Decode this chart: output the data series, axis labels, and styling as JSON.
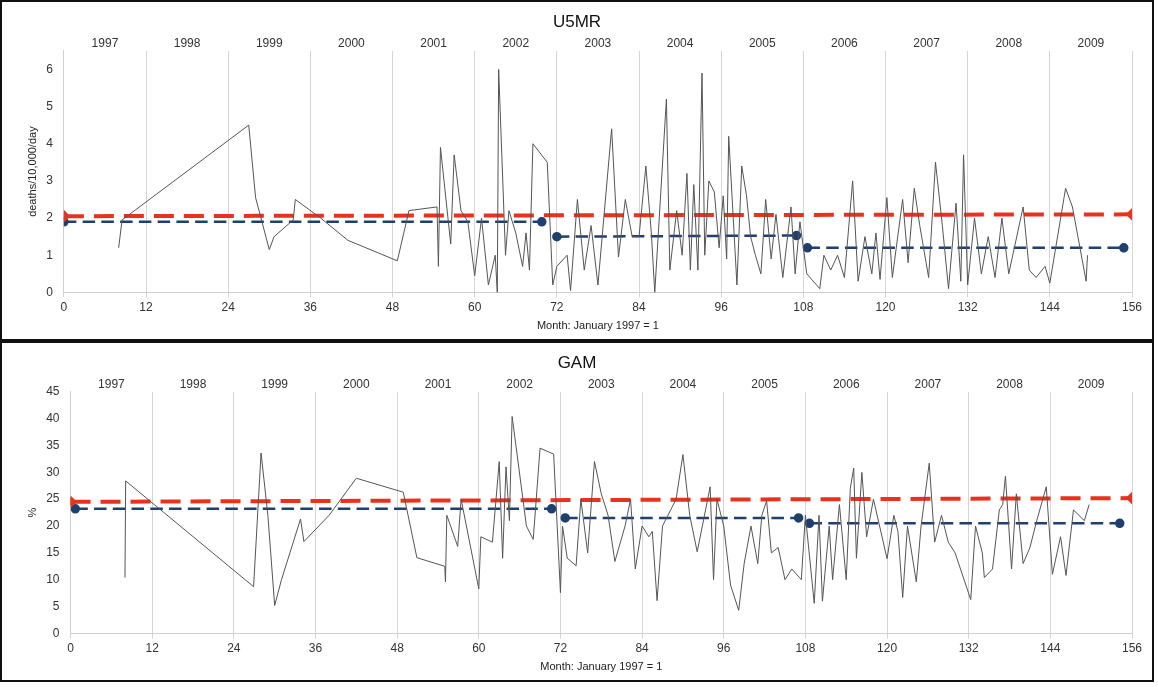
{
  "chart_data": [
    {
      "type": "line",
      "title": "U5MR",
      "xlabel": "Month: January 1997 = 1",
      "ylabel": "deaths/10,000/day",
      "xlim": [
        0,
        156
      ],
      "xticks": [
        0,
        12,
        24,
        36,
        48,
        60,
        72,
        84,
        96,
        108,
        120,
        132,
        144,
        156
      ],
      "ylim": [
        0,
        6.5
      ],
      "yticks": [
        0,
        1,
        2,
        3,
        4,
        5,
        6
      ],
      "x2lim": [
        1996.5,
        2009.5
      ],
      "x2ticks": [
        1997,
        1998,
        1999,
        2000,
        2001,
        2002,
        2003,
        2004,
        2005,
        2006,
        2007,
        2008,
        2009
      ],
      "grid": "x",
      "series": [
        {
          "color": "#555555",
          "marker": "none",
          "line_style": "solid",
          "x": [
            8,
            8.5,
            27,
            28,
            30,
            30.7,
            33.5,
            33.8,
            37.5,
            41.5,
            48.7,
            50.4,
            54.5,
            54.7,
            55,
            56.5,
            57,
            58,
            59,
            60,
            61,
            62,
            63,
            63.3,
            63.5,
            64.5,
            65,
            66,
            67,
            67.5,
            68,
            68.5,
            70.6,
            71.4,
            72,
            73.5,
            74,
            75,
            76,
            77,
            78,
            80,
            81,
            82,
            83,
            84,
            85,
            85.8,
            86.3,
            88,
            88.5,
            89.5,
            90.3,
            91,
            91.5,
            92,
            92.6,
            93.2,
            93.6,
            94.2,
            95,
            95.7,
            96.3,
            96.8,
            97.1,
            98.3,
            99,
            99.7,
            100.3,
            101,
            101.8,
            102.5,
            103.3,
            104,
            105,
            106.2,
            106.8,
            107.5,
            108.5,
            110.4,
            111,
            112,
            113,
            114,
            115.2,
            116,
            117,
            118,
            118.6,
            119.2,
            120.2,
            121,
            122.5,
            123.3,
            124.2,
            125,
            126.3,
            127.3,
            128.3,
            129.2,
            130.3,
            131,
            131.4,
            132,
            133,
            134,
            135,
            136,
            137,
            138,
            140.1,
            141,
            142,
            143.3,
            144,
            146.3,
            147.3,
            149.3,
            149.5
          ],
          "values": [
            1.2,
            1.95,
            4.5,
            2.55,
            1.15,
            1.5,
            1.95,
            2.5,
            2.0,
            1.4,
            0.85,
            2.2,
            2.3,
            0.7,
            3.9,
            1.3,
            3.7,
            2.2,
            1.9,
            0.45,
            2.0,
            0.2,
            1.0,
            0,
            6.0,
            1.0,
            2.2,
            1.6,
            0.7,
            1.6,
            0.6,
            4.0,
            3.5,
            0.2,
            0.7,
            1.0,
            0.05,
            2.5,
            0.6,
            1.8,
            0.2,
            4.4,
            0.95,
            2.5,
            1.5,
            1.5,
            3.4,
            1.6,
            0,
            5.2,
            0.6,
            2.2,
            1.0,
            3.2,
            0.6,
            2.9,
            0.6,
            5.9,
            1.0,
            3.0,
            2.7,
            1.2,
            2.6,
            0.9,
            4.2,
            0.2,
            3.4,
            2.6,
            1.5,
            1.0,
            0.5,
            2.5,
            0.9,
            2.1,
            0.4,
            2.3,
            0.5,
            1.9,
            0.5,
            0.1,
            1.0,
            0.6,
            1.0,
            0.4,
            3.0,
            0.3,
            1.5,
            0.5,
            1.6,
            0.35,
            2.55,
            0.4,
            2.5,
            0.8,
            2.8,
            1.8,
            0.4,
            3.5,
            1.8,
            0.1,
            2.4,
            0.3,
            3.7,
            0.2,
            2.0,
            0.5,
            1.5,
            0.4,
            2.0,
            0.5,
            2.3,
            0.6,
            0.4,
            0.7,
            0.25,
            2.8,
            2.3,
            0.3,
            1.0
          ]
        },
        {
          "color": "#e8321e",
          "marker": "diamond",
          "line_style": "dashed",
          "x": [
            0,
            156
          ],
          "values": [
            2.05,
            2.1
          ]
        },
        {
          "color": "#1f3f6e",
          "marker": "circle",
          "line_style": "dashed",
          "x": [
            0,
            69.8
          ],
          "values": [
            1.9,
            1.9
          ]
        },
        {
          "color": "#1f3f6e",
          "marker": "circle",
          "line_style": "dashed",
          "x": [
            72,
            107
          ],
          "values": [
            1.5,
            1.53
          ]
        },
        {
          "color": "#1f3f6e",
          "marker": "circle",
          "line_style": "dashed",
          "x": [
            108.6,
            154.8
          ],
          "values": [
            1.2,
            1.2
          ]
        }
      ]
    },
    {
      "type": "line",
      "title": "GAM",
      "xlabel": "Month: January 1997 = 1",
      "ylabel": "%",
      "xlim": [
        0,
        156
      ],
      "xticks": [
        0,
        12,
        24,
        36,
        48,
        60,
        72,
        84,
        96,
        108,
        120,
        132,
        144,
        156
      ],
      "ylim": [
        0,
        45
      ],
      "yticks": [
        0,
        5,
        10,
        15,
        20,
        25,
        30,
        35,
        40,
        45
      ],
      "x2lim": [
        1996.5,
        2009.5
      ],
      "x2ticks": [
        1997,
        1998,
        1999,
        2000,
        2001,
        2002,
        2003,
        2004,
        2005,
        2006,
        2007,
        2008,
        2009
      ],
      "grid": "x",
      "series": [
        {
          "color": "#555555",
          "marker": "none",
          "line_style": "solid",
          "x": [
            8,
            8.1,
            26.9,
            28,
            29,
            30,
            31,
            33.8,
            34.3,
            38,
            42,
            48.9,
            50.9,
            55,
            55.1,
            55.3,
            56.9,
            57.4,
            60,
            60.3,
            62,
            63,
            63.5,
            64,
            64.5,
            64.9,
            67,
            68,
            69,
            71,
            72,
            72.3,
            73,
            74.3,
            75,
            76,
            77,
            78,
            79,
            80,
            81.5,
            82.3,
            83,
            84,
            85,
            85.5,
            86.2,
            87,
            89,
            90,
            91,
            92.1,
            94,
            94.5,
            95,
            96,
            97,
            98.2,
            99,
            100,
            101,
            101.6,
            102.3,
            103,
            104,
            105,
            106,
            107.4,
            108,
            109.3,
            110,
            110.5,
            111.5,
            112,
            113,
            114,
            114.6,
            115.1,
            115.5,
            116.3,
            117,
            118,
            120,
            121,
            121.6,
            122.3,
            123,
            124.3,
            125,
            126.2,
            127,
            128,
            129,
            130,
            132.3,
            133,
            134,
            134.3,
            135.5,
            136.5,
            137,
            137.4,
            138.3,
            139,
            140,
            141,
            142,
            143.4,
            144.3,
            145.5,
            146.3,
            147.4,
            149,
            149.7
          ],
          "values": [
            10.4,
            28.4,
            8.7,
            33.6,
            22,
            5.2,
            10,
            21.3,
            17.1,
            22,
            28.9,
            26.3,
            14.1,
            12.5,
            9.6,
            22,
            16.2,
            25,
            8.3,
            18,
            17,
            32,
            14,
            31,
            21,
            40.4,
            20,
            17.5,
            34.5,
            33.4,
            7.6,
            20,
            14,
            12.6,
            25,
            15,
            32,
            26,
            22,
            13.4,
            20,
            25,
            12,
            20,
            18,
            19,
            6.1,
            20,
            25,
            33.3,
            22,
            15.2,
            27.3,
            10,
            25,
            20,
            9,
            4.3,
            13,
            20,
            13,
            22,
            24.7,
            15,
            16,
            10,
            12,
            10,
            22,
            5.6,
            22,
            6,
            20,
            10,
            24,
            10,
            27,
            30.8,
            14,
            30,
            18,
            25,
            13.9,
            22,
            19,
            6.7,
            20,
            9.6,
            20,
            31.7,
            17,
            22,
            17,
            15,
            6.3,
            20,
            15,
            10.4,
            12,
            23,
            24,
            29.3,
            12,
            26,
            13,
            16,
            21,
            27.3,
            11,
            18,
            10.8,
            23,
            21,
            24
          ]
        },
        {
          "color": "#e8321e",
          "marker": "diamond",
          "line_style": "dashed",
          "x": [
            0,
            156
          ],
          "values": [
            24.5,
            25.2
          ]
        },
        {
          "color": "#1f3f6e",
          "marker": "circle",
          "line_style": "dashed",
          "x": [
            0.7,
            70.7
          ],
          "values": [
            23.2,
            23.2
          ]
        },
        {
          "color": "#1f3f6e",
          "marker": "circle",
          "line_style": "dashed",
          "x": [
            72.7,
            107
          ],
          "values": [
            21.5,
            21.5
          ]
        },
        {
          "color": "#1f3f6e",
          "marker": "circle",
          "line_style": "dashed",
          "x": [
            108.6,
            154.2
          ],
          "values": [
            20.5,
            20.5
          ]
        }
      ]
    }
  ]
}
